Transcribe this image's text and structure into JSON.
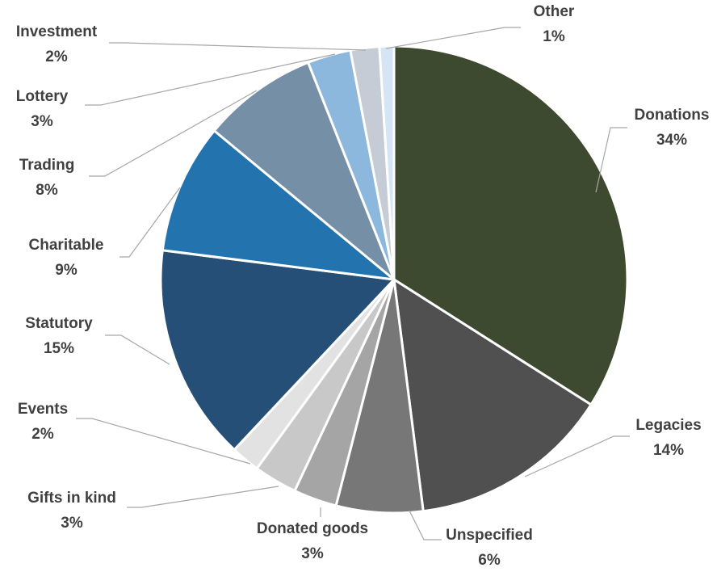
{
  "chart_data": {
    "type": "pie",
    "title": "",
    "start_angle_deg": 0,
    "direction": "clockwise",
    "legend": "none",
    "slices": [
      {
        "label": "Donations",
        "value": 34,
        "value_label": "34%",
        "color": "#3e4a2f"
      },
      {
        "label": "Legacies",
        "value": 14,
        "value_label": "14%",
        "color": "#505050"
      },
      {
        "label": "Unspecified",
        "value": 6,
        "value_label": "6%",
        "color": "#777777"
      },
      {
        "label": "Donated goods",
        "value": 3,
        "value_label": "3%",
        "color": "#a5a5a5"
      },
      {
        "label": "Gifts in kind",
        "value": 3,
        "value_label": "3%",
        "color": "#c8c8c8"
      },
      {
        "label": "Events",
        "value": 2,
        "value_label": "2%",
        "color": "#e2e2e2"
      },
      {
        "label": "Statutory",
        "value": 15,
        "value_label": "15%",
        "color": "#264f78"
      },
      {
        "label": "Charitable",
        "value": 9,
        "value_label": "9%",
        "color": "#2273ae"
      },
      {
        "label": "Trading",
        "value": 8,
        "value_label": "8%",
        "color": "#758fa7"
      },
      {
        "label": "Lottery",
        "value": 3,
        "value_label": "3%",
        "color": "#8cb8de"
      },
      {
        "label": "Investment",
        "value": 2,
        "value_label": "2%",
        "color": "#c5ccd6"
      },
      {
        "label": "Other",
        "value": 1,
        "value_label": "1%",
        "color": "#d6e5f5"
      }
    ]
  }
}
